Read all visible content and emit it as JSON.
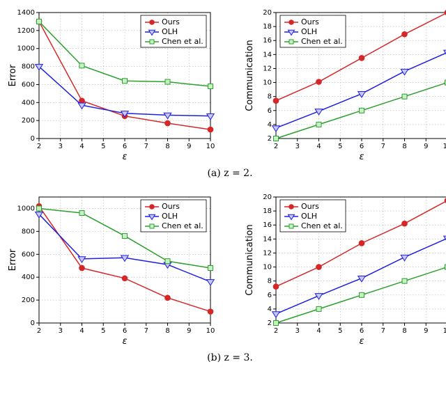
{
  "global": {
    "bg": "#ffffff",
    "grid_color": "#b0b0b0",
    "axis_color": "#000000",
    "series": {
      "ours": {
        "label": "Ours",
        "stroke": "#d62728",
        "fill": "#d62728",
        "marker": "circle"
      },
      "olh": {
        "label": "OLH",
        "stroke": "#1f1fe0",
        "fill": "#c7c7ff",
        "marker": "tri-down"
      },
      "chen": {
        "label": "Chen et al.",
        "stroke": "#2ca02c",
        "fill": "#c7f0c7",
        "marker": "square"
      }
    },
    "legend_order": [
      "ours",
      "olh",
      "chen"
    ],
    "x_label": "ε",
    "x_values": [
      2,
      4,
      6,
      8,
      10
    ],
    "x_lim": [
      2,
      10
    ],
    "x_ticks": [
      2,
      3,
      4,
      5,
      6,
      7,
      8,
      9,
      10
    ]
  },
  "panels": {
    "a_left": {
      "ylabel": "Error",
      "ylim": [
        0,
        1400
      ],
      "yticks": [
        0,
        200,
        400,
        600,
        800,
        1000,
        1200,
        1400
      ],
      "legend_pos": "top-right-inset",
      "data": {
        "ours": [
          1300,
          420,
          250,
          170,
          100
        ],
        "olh": [
          800,
          370,
          280,
          260,
          250
        ],
        "chen": [
          1300,
          810,
          640,
          630,
          580
        ]
      }
    },
    "a_right": {
      "ylabel": "Communication",
      "ylim": [
        2,
        20
      ],
      "yticks": [
        2,
        4,
        6,
        8,
        10,
        12,
        14,
        16,
        18,
        20
      ],
      "legend_pos": "top-left",
      "data": {
        "ours": [
          7.4,
          10.1,
          13.5,
          16.9,
          20.0
        ],
        "olh": [
          3.5,
          5.9,
          8.4,
          11.6,
          14.3
        ],
        "chen": [
          2.0,
          4.0,
          6.0,
          8.0,
          10.0
        ]
      }
    },
    "b_left": {
      "ylabel": "Error",
      "ylim": [
        0,
        1100
      ],
      "yticks": [
        0,
        200,
        400,
        600,
        800,
        1000
      ],
      "legend_pos": "top-right-inset",
      "data": {
        "ours": [
          1020,
          480,
          390,
          220,
          100
        ],
        "olh": [
          950,
          560,
          570,
          510,
          360
        ],
        "chen": [
          1000,
          960,
          760,
          540,
          480
        ]
      }
    },
    "b_right": {
      "ylabel": "Communication",
      "ylim": [
        2,
        20
      ],
      "yticks": [
        2,
        4,
        6,
        8,
        10,
        12,
        14,
        16,
        18,
        20
      ],
      "legend_pos": "top-left",
      "data": {
        "ours": [
          7.2,
          10.0,
          13.4,
          16.2,
          19.5
        ],
        "olh": [
          3.3,
          5.9,
          8.4,
          11.4,
          14.1
        ],
        "chen": [
          2.0,
          4.0,
          6.0,
          8.0,
          10.0
        ]
      }
    }
  },
  "captions": {
    "a": "(a) z = 2.",
    "b": "(b) z = 3."
  }
}
